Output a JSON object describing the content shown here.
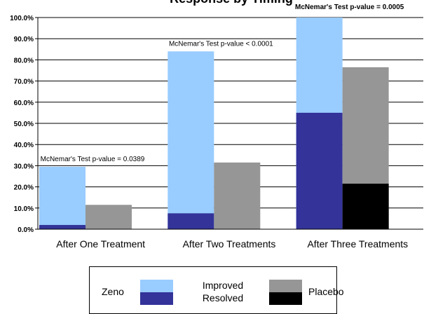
{
  "chart_data": {
    "type": "bar",
    "title": "Response by Timing",
    "title_visible_fragment": "...response by Timing",
    "categories": [
      "After One Treatment",
      "After Two Treatments",
      "After Three Treatments"
    ],
    "ylim": [
      0,
      100
    ],
    "yticks": [
      "0.0%",
      "10.0%",
      "20.0%",
      "30.0%",
      "40.0%",
      "50.0%",
      "60.0%",
      "70.0%",
      "80.0%",
      "90.0%",
      "100.0%"
    ],
    "grid": true,
    "series": [
      {
        "name": "Zeno",
        "improved": [
          29.5,
          84.0,
          100.0
        ],
        "resolved": [
          2.0,
          7.5,
          55.0
        ]
      },
      {
        "name": "Placebo",
        "improved": [
          11.5,
          31.5,
          76.5
        ],
        "resolved": [
          0.0,
          0.0,
          21.5
        ]
      }
    ],
    "annotations": [
      "McNemar's Test p-value = 0.0389",
      "McNemar's Test p-value < 0.0001",
      "McNemar's Test p-value = 0.0005"
    ],
    "colors": {
      "zeno_improved": "#99ccff",
      "zeno_resolved": "#333399",
      "placebo_improved": "#969696",
      "placebo_resolved": "#000000",
      "grid": "#000000"
    }
  },
  "legend": {
    "zeno": "Zeno",
    "improved": "Improved",
    "resolved": "Resolved",
    "placebo": "Placebo"
  }
}
